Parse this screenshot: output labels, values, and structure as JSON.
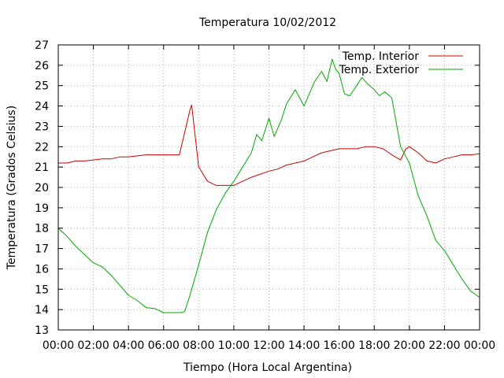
{
  "chart_data": {
    "type": "line",
    "title": "Temperatura 10/02/2012",
    "xlabel": "Tiempo (Hora Local Argentina)",
    "ylabel": "Temperatura (Grados Celsius)",
    "xlim": [
      0,
      24
    ],
    "ylim": [
      13,
      27
    ],
    "x_ticks": [
      "00:00",
      "02:00",
      "04:00",
      "06:00",
      "08:00",
      "10:00",
      "12:00",
      "14:00",
      "16:00",
      "18:00",
      "20:00",
      "22:00",
      "00:00"
    ],
    "y_ticks": [
      "13",
      "14",
      "15",
      "16",
      "17",
      "18",
      "19",
      "20",
      "21",
      "22",
      "23",
      "24",
      "25",
      "26",
      "27"
    ],
    "grid": true,
    "legend_position": "top-right",
    "series": [
      {
        "name": "Temp. Interior",
        "color": "#cc0000",
        "x": [
          0,
          0.5,
          1,
          1.5,
          2,
          2.5,
          3,
          3.5,
          4,
          5,
          6,
          6.9,
          7.2,
          7.5,
          7.6,
          7.8,
          8,
          8.5,
          9,
          9.5,
          10,
          10.5,
          11,
          12,
          12.5,
          13,
          14,
          14.5,
          15,
          15.5,
          16,
          17,
          17.5,
          18,
          18.5,
          19,
          19.5,
          19.8,
          20,
          20.5,
          21,
          21.5,
          22,
          22.5,
          23,
          23.5,
          24
        ],
        "y": [
          21.2,
          21.2,
          21.3,
          21.3,
          21.35,
          21.4,
          21.4,
          21.5,
          21.5,
          21.6,
          21.6,
          21.6,
          22.7,
          23.8,
          24.05,
          22.5,
          21.0,
          20.3,
          20.1,
          20.1,
          20.1,
          20.3,
          20.5,
          20.8,
          20.9,
          21.1,
          21.3,
          21.5,
          21.7,
          21.8,
          21.9,
          21.9,
          22.0,
          22.0,
          21.9,
          21.6,
          21.35,
          21.9,
          22.0,
          21.7,
          21.3,
          21.2,
          21.4,
          21.5,
          21.6,
          21.6,
          21.65
        ]
      },
      {
        "name": "Temp. Exterior",
        "color": "#00aa00",
        "x": [
          0,
          0.5,
          1,
          1.5,
          2,
          2.5,
          3,
          3.5,
          4,
          4.5,
          5,
          5.5,
          6,
          6.5,
          7,
          7.2,
          7.5,
          8,
          8.5,
          9,
          9.5,
          10,
          10.5,
          11,
          11.3,
          11.6,
          12,
          12.3,
          12.7,
          13,
          13.5,
          14,
          14.3,
          14.6,
          15,
          15.3,
          15.6,
          15.8,
          16,
          16.3,
          16.6,
          17,
          17.3,
          17.6,
          18,
          18.3,
          18.6,
          19,
          19.5,
          20,
          20.5,
          21,
          21.5,
          22,
          22.5,
          23,
          23.5,
          24
        ],
        "y": [
          18.0,
          17.6,
          17.1,
          16.7,
          16.3,
          16.1,
          15.7,
          15.2,
          14.7,
          14.45,
          14.1,
          14.05,
          13.85,
          13.85,
          13.85,
          13.9,
          14.7,
          16.2,
          17.8,
          18.9,
          19.7,
          20.3,
          21.0,
          21.7,
          22.6,
          22.3,
          23.4,
          22.5,
          23.3,
          24.1,
          24.8,
          24.0,
          24.6,
          25.2,
          25.7,
          25.2,
          26.3,
          25.8,
          25.6,
          24.6,
          24.5,
          25.0,
          25.4,
          25.1,
          24.8,
          24.5,
          24.7,
          24.4,
          22.0,
          21.2,
          19.6,
          18.6,
          17.4,
          16.9,
          16.2,
          15.5,
          14.9,
          14.6
        ]
      }
    ]
  }
}
